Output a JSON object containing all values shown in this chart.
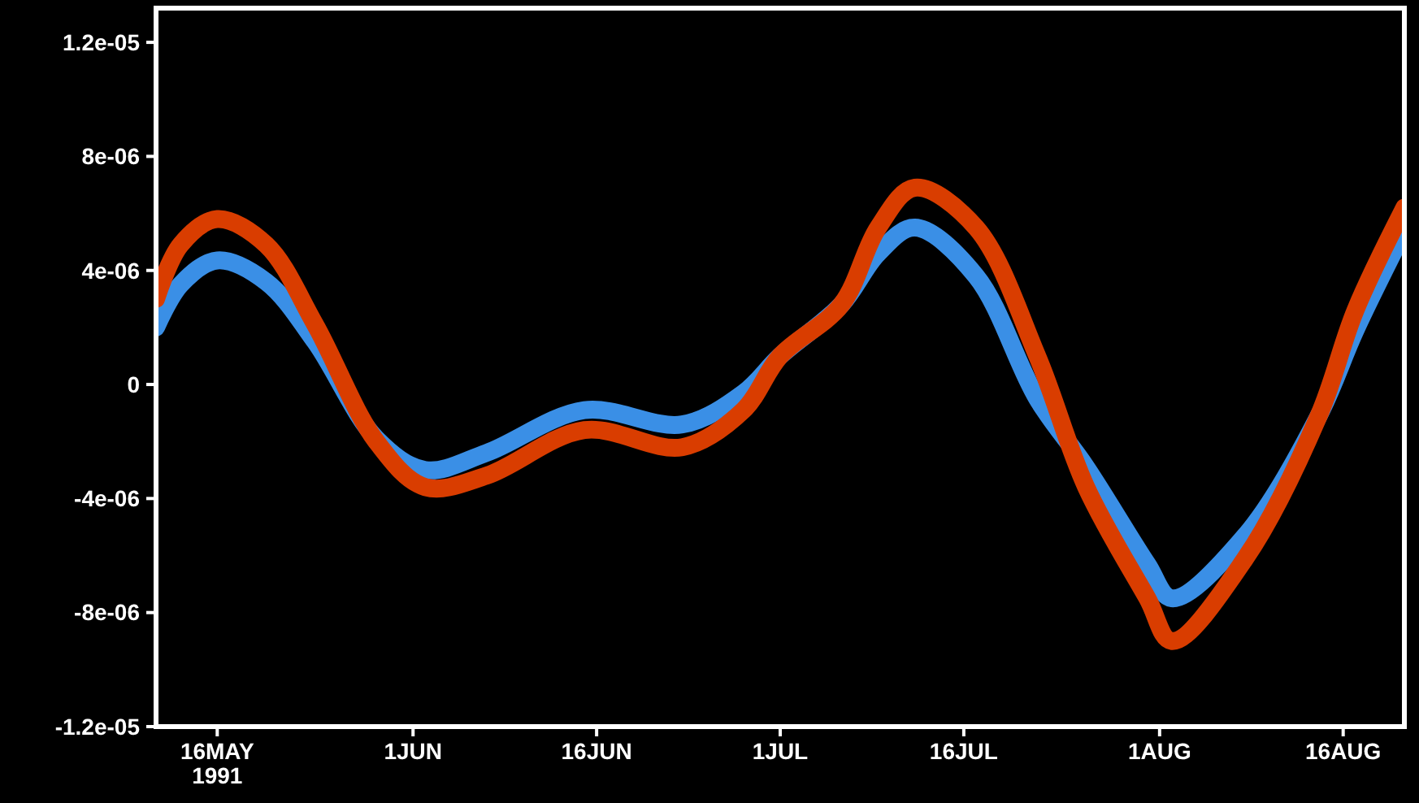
{
  "chart_data": {
    "type": "line",
    "x": [
      "1991-05-11",
      "1991-05-13",
      "1991-05-16",
      "1991-05-20",
      "1991-05-24",
      "1991-05-29",
      "1991-06-02",
      "1991-06-07",
      "1991-06-15",
      "1991-06-23",
      "1991-06-28",
      "1991-07-01",
      "1991-07-06",
      "1991-07-09",
      "1991-07-12",
      "1991-07-17",
      "1991-07-22",
      "1991-07-26",
      "1991-07-31",
      "1991-08-02",
      "1991-08-08",
      "1991-08-14",
      "1991-08-17",
      "1991-08-21"
    ],
    "series": [
      {
        "color": "#3a8fe6",
        "values": [
          2e-06,
          3.5e-06,
          4.35e-06,
          3.6e-06,
          1.5e-06,
          -1.9e-06,
          -3e-06,
          -2.4e-06,
          -9e-07,
          -1.4e-06,
          -3e-07,
          1e-06,
          2.8e-06,
          4.6e-06,
          5.5e-06,
          3.8e-06,
          -5e-07,
          -2.9e-06,
          -6.3e-06,
          -7.5e-06,
          -5.3e-06,
          -1.1e-06,
          1.9e-06,
          5.4e-06
        ]
      },
      {
        "color": "#d93d00",
        "values": [
          3e-06,
          4.9e-06,
          5.8e-06,
          4.9e-06,
          2.1e-06,
          -2e-06,
          -3.6e-06,
          -3.2e-06,
          -1.6e-06,
          -2.2e-06,
          -9e-07,
          1e-06,
          2.8e-06,
          5.5e-06,
          6.9e-06,
          5.5e-06,
          1e-06,
          -3.6e-06,
          -7.5e-06,
          -9e-06,
          -6.1e-06,
          -1.1e-06,
          2.6e-06,
          6.2e-06
        ]
      }
    ],
    "xlim": [
      "1991-05-11",
      "1991-08-21"
    ],
    "xticks": [
      {
        "value": "1991-05-16",
        "label": "16MAY\n1991"
      },
      {
        "value": "1991-06-01",
        "label": "1JUN"
      },
      {
        "value": "1991-06-16",
        "label": "16JUN"
      },
      {
        "value": "1991-07-01",
        "label": "1JUL"
      },
      {
        "value": "1991-07-16",
        "label": "16JUL"
      },
      {
        "value": "1991-08-01",
        "label": "1AUG"
      },
      {
        "value": "1991-08-16",
        "label": "16AUG"
      }
    ],
    "ylim": [
      -1.2e-05,
      1.32e-05
    ],
    "yticks": [
      {
        "value": -1.2e-05,
        "label": "-1.2e-05"
      },
      {
        "value": -8e-06,
        "label": "-8e-06"
      },
      {
        "value": -4e-06,
        "label": "-4e-06"
      },
      {
        "value": 0,
        "label": "0"
      },
      {
        "value": 4e-06,
        "label": "4e-06"
      },
      {
        "value": 8e-06,
        "label": "8e-06"
      },
      {
        "value": 1.2e-05,
        "label": "1.2e-05"
      }
    ],
    "grid": false,
    "line_style": "solid"
  }
}
